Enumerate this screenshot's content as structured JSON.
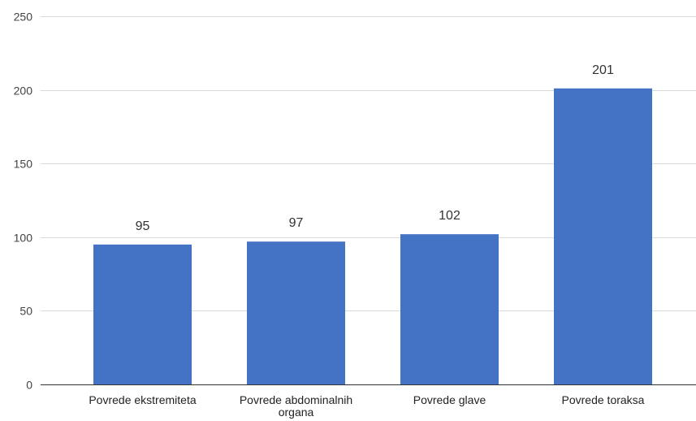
{
  "chart_data": {
    "type": "bar",
    "categories": [
      [
        "Povrede ekstremiteta"
      ],
      [
        "Povrede abdominalnih",
        "organa"
      ],
      [
        "Povrede glave"
      ],
      [
        "Povrede toraksa"
      ]
    ],
    "values": [
      95,
      97,
      102,
      201
    ],
    "ylim": [
      0,
      250
    ],
    "yticks": [
      0,
      50,
      100,
      150,
      200,
      250
    ],
    "title": "",
    "xlabel": "",
    "ylabel": "",
    "grid": true,
    "bar_color": "#4472c4",
    "gridline_color": "#d9d9d9"
  }
}
